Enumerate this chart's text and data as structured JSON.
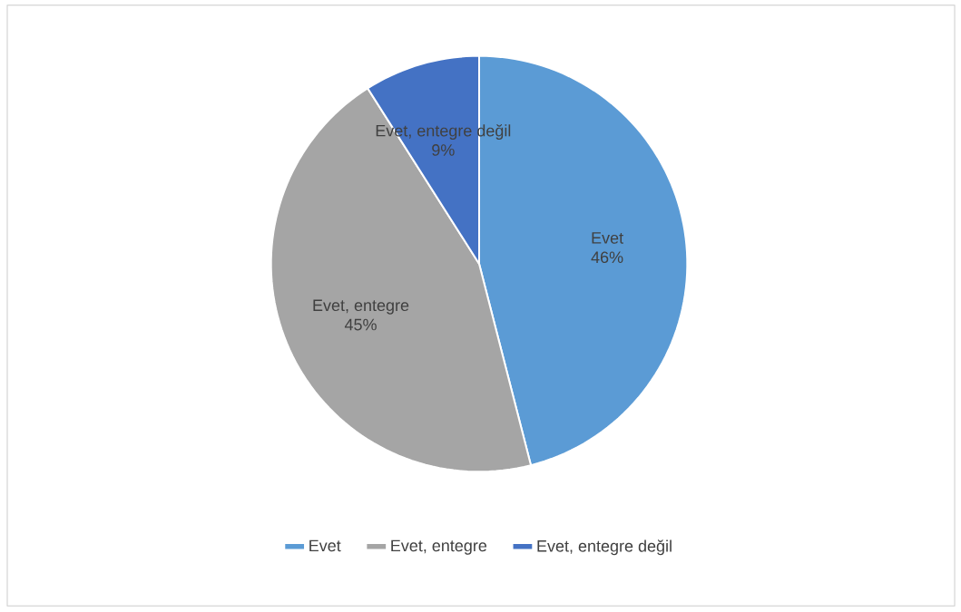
{
  "chart_data": {
    "type": "pie",
    "categories": [
      "Evet",
      "Evet, entegre",
      "Evet, entegre değil"
    ],
    "values": [
      46,
      45,
      9
    ],
    "value_labels": [
      "46%",
      "45%",
      "9%"
    ],
    "colors": [
      "#5b9bd5",
      "#a5a5a5",
      "#4472c4"
    ],
    "legend": "bottom"
  }
}
